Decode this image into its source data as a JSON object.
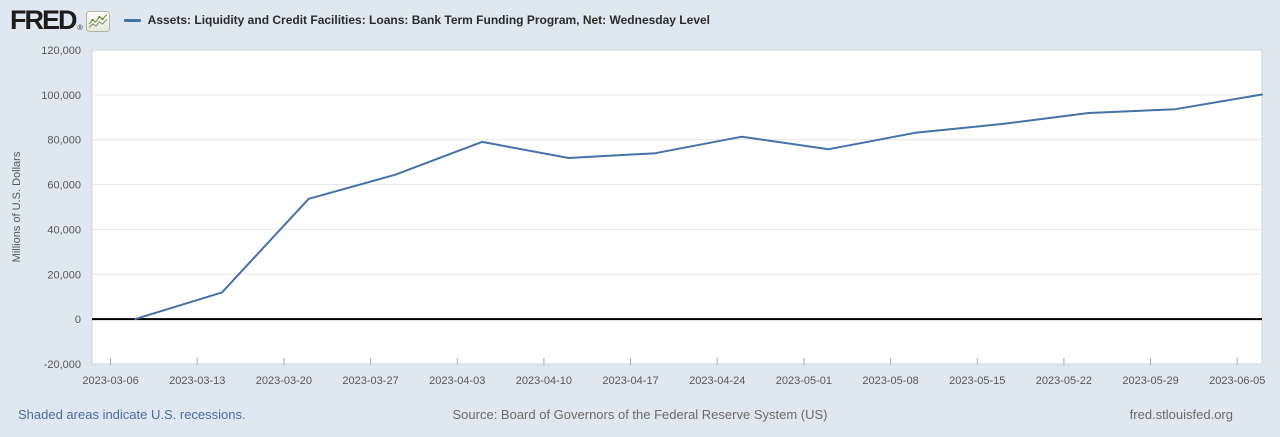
{
  "header": {
    "logo_text": "FRED",
    "logo_registered_mark": "®",
    "logo_icon": "line-chart-icon"
  },
  "chart_data": {
    "type": "line",
    "title": "Assets: Liquidity and Credit Facilities: Loans: Bank Term Funding Program, Net: Wednesday Level",
    "ylabel": "Millions of U.S. Dollars",
    "xlabel": "",
    "series": [
      {
        "name": "Assets: Liquidity and Credit Facilities: Loans: Bank Term Funding Program, Net: Wednesday Level",
        "color": "#4572a7",
        "x": [
          "2023-03-08",
          "2023-03-15",
          "2023-03-22",
          "2023-03-29",
          "2023-04-05",
          "2023-04-12",
          "2023-04-19",
          "2023-04-26",
          "2023-05-03",
          "2023-05-10",
          "2023-05-17",
          "2023-05-24",
          "2023-05-31",
          "2023-06-07"
        ],
        "values": [
          0,
          11943,
          53669,
          64403,
          79021,
          71837,
          73982,
          81327,
          75778,
          83101,
          87006,
          91907,
          93615,
          100161
        ]
      }
    ],
    "x_tick_labels": [
      "2023-03-06",
      "2023-03-13",
      "2023-03-20",
      "2023-03-27",
      "2023-04-03",
      "2023-04-10",
      "2023-04-17",
      "2023-04-24",
      "2023-05-01",
      "2023-05-08",
      "2023-05-15",
      "2023-05-22",
      "2023-05-29",
      "2023-06-05"
    ],
    "y_ticks": [
      -20000,
      0,
      20000,
      40000,
      60000,
      80000,
      100000,
      120000
    ],
    "ylim": [
      -20000,
      120000
    ],
    "xlim": [
      "2023-03-04T12:00",
      "2023-06-07"
    ],
    "grid": true,
    "zero_line": true,
    "legend_position": "top-left"
  },
  "footer": {
    "recessions_link": "Shaded areas indicate U.S. recessions.",
    "source": "Source: Board of Governors of the Federal Reserve System (US)",
    "site_link": "fred.stlouisfed.org"
  },
  "colors": {
    "page_background": "#dfe7f0",
    "plot_background": "#ffffff",
    "plot_border": "#ccd5e0",
    "gridline": "#e6e6e6",
    "zero_line": "#000000",
    "series_line": "#4572a7",
    "axis_text": "#585858",
    "tick_mark": "#aaaaaa",
    "title_text": "#2b2b2b",
    "link_text": "#4a6d9c",
    "muted_text": "#6b6b6b"
  }
}
